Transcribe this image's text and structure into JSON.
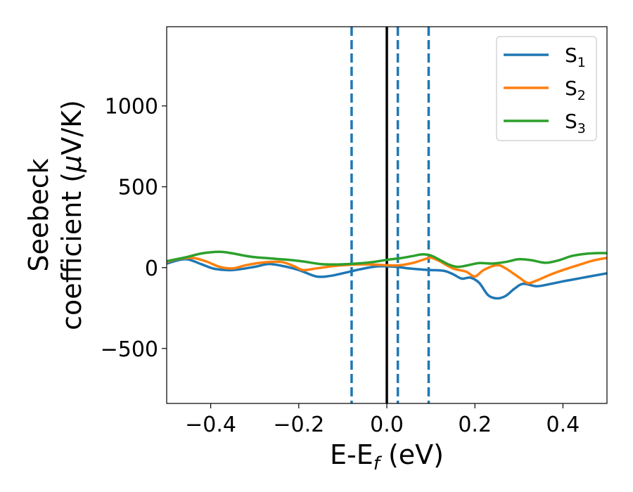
{
  "chart_data": {
    "type": "line",
    "xlabel": {
      "main": "E-E",
      "sub": "f",
      "unit": " (eV)"
    },
    "ylabel": {
      "line1": "Seebeck",
      "line2_prefix": "coefficient  (",
      "mu": "μ",
      "line2_suffix": "V/K)"
    },
    "xlim": [
      -0.5,
      0.5
    ],
    "ylim": [
      -840,
      1490
    ],
    "xticks": [
      -0.4,
      -0.2,
      0.0,
      0.2,
      0.4
    ],
    "xtick_labels": [
      "−0.4",
      "−0.2",
      "0.0",
      "0.2",
      "0.4"
    ],
    "yticks": [
      -500,
      0,
      500,
      1000
    ],
    "ytick_labels": [
      "−500",
      "0",
      "500",
      "1000"
    ],
    "grid": false,
    "legend_position": "top-right",
    "reference_lines": [
      {
        "x": -0.08,
        "style": "dashed",
        "color": "#1f77b4"
      },
      {
        "x": 0.0,
        "style": "solid",
        "color": "#000000"
      },
      {
        "x": 0.025,
        "style": "dashed",
        "color": "#1f77b4"
      },
      {
        "x": 0.095,
        "style": "dashed",
        "color": "#1f77b4"
      }
    ],
    "series": [
      {
        "name": "S",
        "sub": "1",
        "color": "#1f77b4",
        "points": [
          [
            -0.5,
            25
          ],
          [
            -0.47,
            48
          ],
          [
            -0.45,
            50
          ],
          [
            -0.42,
            20
          ],
          [
            -0.39,
            -8
          ],
          [
            -0.35,
            -15
          ],
          [
            -0.3,
            5
          ],
          [
            -0.27,
            22
          ],
          [
            -0.24,
            12
          ],
          [
            -0.2,
            -15
          ],
          [
            -0.16,
            -55
          ],
          [
            -0.13,
            -52
          ],
          [
            -0.1,
            -35
          ],
          [
            -0.06,
            -10
          ],
          [
            -0.02,
            8
          ],
          [
            0.02,
            5
          ],
          [
            0.05,
            -5
          ],
          [
            0.08,
            -12
          ],
          [
            0.1,
            -15
          ],
          [
            0.13,
            -20
          ],
          [
            0.15,
            -40
          ],
          [
            0.17,
            -68
          ],
          [
            0.19,
            -62
          ],
          [
            0.21,
            -95
          ],
          [
            0.23,
            -170
          ],
          [
            0.25,
            -190
          ],
          [
            0.27,
            -175
          ],
          [
            0.29,
            -130
          ],
          [
            0.31,
            -100
          ],
          [
            0.34,
            -115
          ],
          [
            0.37,
            -102
          ],
          [
            0.4,
            -85
          ],
          [
            0.43,
            -70
          ],
          [
            0.46,
            -55
          ],
          [
            0.5,
            -35
          ]
        ]
      },
      {
        "name": "S",
        "sub": "2",
        "color": "#ff7f0e",
        "points": [
          [
            -0.5,
            35
          ],
          [
            -0.47,
            55
          ],
          [
            -0.44,
            60
          ],
          [
            -0.41,
            38
          ],
          [
            -0.38,
            5
          ],
          [
            -0.35,
            -5
          ],
          [
            -0.32,
            15
          ],
          [
            -0.28,
            32
          ],
          [
            -0.24,
            35
          ],
          [
            -0.21,
            8
          ],
          [
            -0.19,
            -15
          ],
          [
            -0.16,
            -5
          ],
          [
            -0.12,
            10
          ],
          [
            -0.08,
            18
          ],
          [
            -0.04,
            20
          ],
          [
            0.0,
            15
          ],
          [
            0.03,
            15
          ],
          [
            0.06,
            30
          ],
          [
            0.09,
            55
          ],
          [
            0.1,
            62
          ],
          [
            0.12,
            40
          ],
          [
            0.15,
            -5
          ],
          [
            0.18,
            -25
          ],
          [
            0.2,
            -55
          ],
          [
            0.22,
            -15
          ],
          [
            0.25,
            15
          ],
          [
            0.27,
            -5
          ],
          [
            0.3,
            -60
          ],
          [
            0.32,
            -95
          ],
          [
            0.34,
            -80
          ],
          [
            0.37,
            -45
          ],
          [
            0.4,
            -15
          ],
          [
            0.44,
            20
          ],
          [
            0.47,
            45
          ],
          [
            0.5,
            60
          ]
        ]
      },
      {
        "name": "S",
        "sub": "3",
        "color": "#2ca02c",
        "points": [
          [
            -0.5,
            40
          ],
          [
            -0.46,
            62
          ],
          [
            -0.42,
            88
          ],
          [
            -0.38,
            98
          ],
          [
            -0.35,
            88
          ],
          [
            -0.31,
            68
          ],
          [
            -0.27,
            58
          ],
          [
            -0.23,
            50
          ],
          [
            -0.19,
            38
          ],
          [
            -0.15,
            22
          ],
          [
            -0.11,
            20
          ],
          [
            -0.07,
            25
          ],
          [
            -0.03,
            35
          ],
          [
            0.0,
            48
          ],
          [
            0.03,
            58
          ],
          [
            0.06,
            72
          ],
          [
            0.08,
            82
          ],
          [
            0.1,
            75
          ],
          [
            0.12,
            48
          ],
          [
            0.14,
            20
          ],
          [
            0.16,
            5
          ],
          [
            0.18,
            12
          ],
          [
            0.21,
            28
          ],
          [
            0.24,
            25
          ],
          [
            0.27,
            35
          ],
          [
            0.3,
            52
          ],
          [
            0.33,
            45
          ],
          [
            0.36,
            30
          ],
          [
            0.39,
            45
          ],
          [
            0.42,
            72
          ],
          [
            0.45,
            85
          ],
          [
            0.48,
            90
          ],
          [
            0.5,
            90
          ]
        ]
      }
    ]
  }
}
